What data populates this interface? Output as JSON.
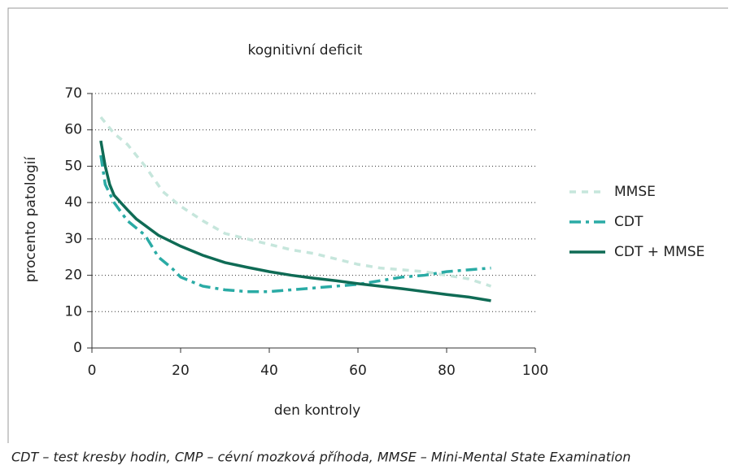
{
  "chart_data": {
    "type": "line",
    "title": "kognitivní deficit",
    "x_label": "den kontroly",
    "y_label": "procento patologií",
    "caption": "CDT – test kresby hodin, CMP – cévní mozková příhoda, MMSE – Mini-Mental State Examination",
    "xlim": [
      0,
      100
    ],
    "xticks": [
      0,
      20,
      40,
      60,
      80,
      100
    ],
    "ylim": [
      0,
      70
    ],
    "yticks": [
      0,
      10,
      20,
      30,
      40,
      50,
      60,
      70
    ],
    "grid": true,
    "legend": "right",
    "series": [
      {
        "name": "MMSE",
        "color": "#c6e6dc",
        "style": "dashed",
        "x": [
          2,
          5,
          8,
          12,
          16,
          20,
          25,
          30,
          35,
          40,
          45,
          50,
          55,
          60,
          65,
          70,
          75,
          80,
          85,
          90
        ],
        "values": [
          63.5,
          59,
          56,
          50,
          43,
          39,
          35,
          31.5,
          30,
          28.5,
          27,
          26,
          24.5,
          23,
          22,
          21.5,
          21,
          20,
          19,
          17
        ]
      },
      {
        "name": "CDT",
        "color": "#2aaba5",
        "style": "dashdot",
        "x": [
          2,
          3,
          5,
          8,
          10,
          12,
          15,
          18,
          20,
          25,
          30,
          35,
          40,
          45,
          50,
          55,
          60,
          65,
          70,
          75,
          80,
          85,
          90
        ],
        "values": [
          53,
          45,
          40,
          35,
          33,
          31,
          25,
          22,
          19.5,
          17,
          16,
          15.5,
          15.5,
          16,
          16.5,
          17,
          17.5,
          18.5,
          19.5,
          20,
          21,
          21.5,
          22
        ]
      },
      {
        "name": "CDT + MMSE",
        "color": "#0f6b55",
        "style": "solid",
        "x": [
          2,
          3,
          4,
          5,
          8,
          10,
          15,
          20,
          25,
          30,
          35,
          40,
          45,
          50,
          55,
          60,
          65,
          70,
          75,
          80,
          85,
          90
        ],
        "values": [
          57,
          50,
          45,
          42,
          38,
          35.5,
          31,
          28,
          25.5,
          23.5,
          22.2,
          21,
          20,
          19.2,
          18.5,
          17.7,
          17,
          16.3,
          15.5,
          14.7,
          14,
          13
        ]
      }
    ]
  }
}
